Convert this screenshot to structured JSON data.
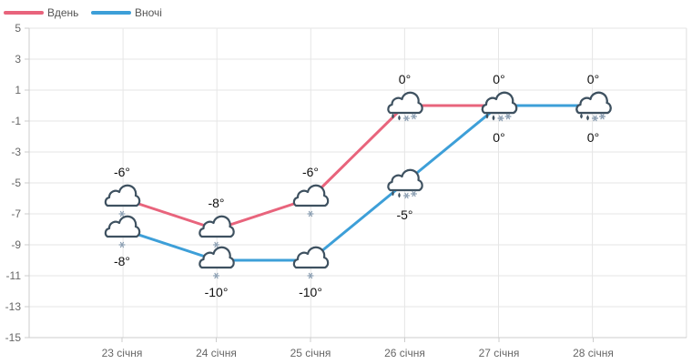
{
  "chart_data": {
    "type": "line",
    "categories": [
      "23 січня",
      "24 січня",
      "25 січня",
      "26 січня",
      "27 січня",
      "28 січня"
    ],
    "series": [
      {
        "name": "Вдень",
        "color": "#e8647c",
        "values": [
          -6,
          -8,
          -6,
          0,
          0,
          0
        ],
        "labels": [
          "-6°",
          "-8°",
          "-6°",
          "0°",
          "0°",
          "0°"
        ],
        "icons": [
          "cloud-snow-icon",
          "cloud-snow-icon",
          "cloud-snow-icon",
          "cloud-sleet-icon",
          "cloud-sleet-icon",
          "cloud-sleet-icon"
        ]
      },
      {
        "name": "Вночі",
        "color": "#3d9fd8",
        "values": [
          -8,
          -10,
          -10,
          -5,
          0,
          0
        ],
        "labels": [
          "-8°",
          "-10°",
          "-10°",
          "-5°",
          "0°",
          "0°"
        ],
        "icons": [
          "cloud-snow-icon",
          "cloud-snow-icon",
          "cloud-snow-icon",
          "cloud-sleet-icon",
          "cloud-sleet-icon",
          "cloud-sleet-icon"
        ]
      }
    ],
    "y_ticks": [
      "5",
      "3",
      "1",
      "-1",
      "-3",
      "-5",
      "-7",
      "-9",
      "-11",
      "-13",
      "-15"
    ],
    "ylim": [
      -15,
      5
    ],
    "legend_position": "top-left",
    "grid": true
  }
}
